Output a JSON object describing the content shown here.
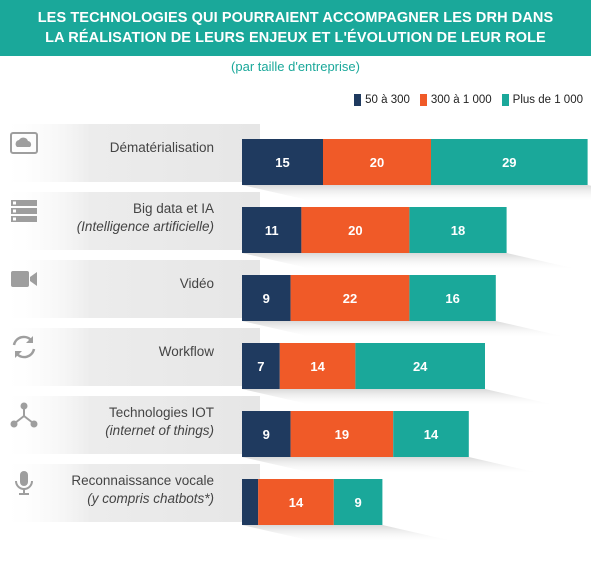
{
  "header": {
    "title_line1": "LES TECHNOLOGIES QUI POURRAIENT ACCOMPAGNER LES DRH DANS",
    "title_line2": "LA RÉALISATION DE LEURS ENJEUX ET L'ÉVOLUTION DE LEUR ROLE",
    "subtitle": "(par taille d'entreprise)"
  },
  "colors": {
    "banner": "#1aa89a",
    "series1": "#1f3a5f",
    "series2": "#f05a28",
    "series3": "#1aa89a",
    "shadow": "#d9d9d9",
    "icon": "#9e9e9e"
  },
  "chart_data": {
    "type": "bar",
    "orientation": "horizontal",
    "stacked": true,
    "legend_position": "top-right",
    "grid": false,
    "categories": [
      {
        "label": "Dématérialisation",
        "sublabel": "",
        "icon": "cloud-icon"
      },
      {
        "label": "Big data et IA",
        "sublabel": "(Intelligence artificielle)",
        "icon": "server-icon"
      },
      {
        "label": "Vidéo",
        "sublabel": "",
        "icon": "video-camera-icon"
      },
      {
        "label": "Workflow",
        "sublabel": "",
        "icon": "refresh-icon"
      },
      {
        "label": "Technologies IOT",
        "sublabel": "(internet of things)",
        "icon": "network-icon"
      },
      {
        "label": "Reconnaissance vocale",
        "sublabel": "(y compris chatbots*)",
        "icon": "microphone-icon"
      }
    ],
    "series": [
      {
        "name": "50 à 300",
        "values": [
          15,
          11,
          9,
          7,
          9,
          3
        ]
      },
      {
        "name": "300 à 1 000",
        "values": [
          20,
          20,
          22,
          14,
          19,
          14
        ]
      },
      {
        "name": "Plus de 1 000",
        "values": [
          29,
          18,
          16,
          24,
          14,
          9
        ]
      }
    ]
  }
}
